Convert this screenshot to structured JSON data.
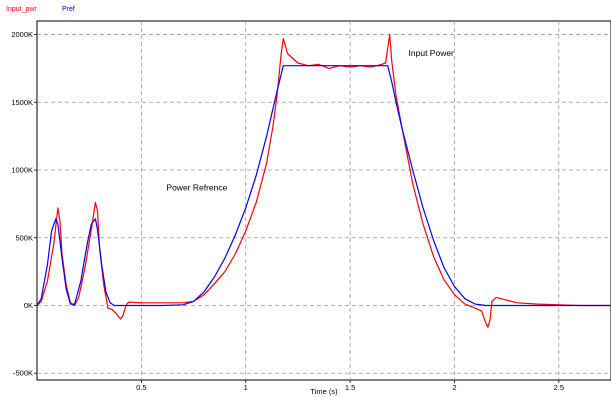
{
  "chart_data": {
    "type": "line",
    "xlabel": "Time (s)",
    "ylabel": "",
    "xlim": [
      0,
      2.75
    ],
    "ylim": [
      -550000,
      2100000
    ],
    "grid": true,
    "legend_placement": "top-left",
    "x_ticks": [
      0.5,
      1,
      1.5,
      2,
      2.5
    ],
    "x_tick_labels": [
      "0.5",
      "1",
      "1.5",
      "2",
      "2.5"
    ],
    "y_ticks": [
      -500000,
      0,
      500000,
      1000000,
      1500000,
      2000000
    ],
    "y_tick_labels": [
      "-500K",
      "0K",
      "500K",
      "1000K",
      "1500K",
      "2000K"
    ],
    "annotations": [
      {
        "text": "Input Power",
        "x": 1.78,
        "y": 1840000
      },
      {
        "text": "Power Refrence",
        "x": 0.62,
        "y": 850000
      }
    ],
    "series": [
      {
        "name": "Input_pwr",
        "color": "#ff0000",
        "x": [
          0,
          0.02,
          0.05,
          0.08,
          0.1,
          0.11,
          0.12,
          0.14,
          0.16,
          0.18,
          0.2,
          0.23,
          0.26,
          0.28,
          0.29,
          0.3,
          0.32,
          0.34,
          0.36,
          0.38,
          0.4,
          0.41,
          0.42,
          0.43,
          0.44,
          0.5,
          0.6,
          0.7,
          0.75,
          0.8,
          0.85,
          0.9,
          0.95,
          1.0,
          1.05,
          1.1,
          1.13,
          1.15,
          1.17,
          1.18,
          1.2,
          1.25,
          1.3,
          1.35,
          1.4,
          1.45,
          1.5,
          1.55,
          1.6,
          1.65,
          1.67,
          1.68,
          1.69,
          1.7,
          1.72,
          1.75,
          1.8,
          1.85,
          1.9,
          1.95,
          2.0,
          2.05,
          2.1,
          2.13,
          2.15,
          2.16,
          2.17,
          2.18,
          2.2,
          2.25,
          2.3,
          2.4,
          2.5,
          2.6,
          2.75
        ],
        "y": [
          0,
          30000,
          180000,
          450000,
          720000,
          620000,
          380000,
          150000,
          20000,
          0,
          60000,
          280000,
          560000,
          760000,
          700000,
          420000,
          150000,
          -20000,
          -30000,
          -60000,
          -100000,
          -80000,
          -30000,
          10000,
          25000,
          20000,
          20000,
          20000,
          30000,
          80000,
          160000,
          250000,
          380000,
          550000,
          760000,
          1050000,
          1320000,
          1550000,
          1860000,
          1970000,
          1860000,
          1790000,
          1770000,
          1780000,
          1750000,
          1770000,
          1760000,
          1770000,
          1760000,
          1780000,
          1790000,
          1900000,
          2000000,
          1800000,
          1550000,
          1300000,
          900000,
          600000,
          360000,
          190000,
          80000,
          10000,
          -20000,
          -40000,
          -130000,
          -160000,
          -110000,
          30000,
          60000,
          40000,
          20000,
          10000,
          5000,
          0,
          0
        ]
      },
      {
        "name": "Pref",
        "color": "#0000ff",
        "x": [
          0,
          0.02,
          0.05,
          0.07,
          0.09,
          0.1,
          0.12,
          0.14,
          0.16,
          0.18,
          0.21,
          0.24,
          0.26,
          0.28,
          0.29,
          0.31,
          0.33,
          0.35,
          0.37,
          0.4,
          0.5,
          0.6,
          0.7,
          0.75,
          0.8,
          0.85,
          0.9,
          0.95,
          1.0,
          1.05,
          1.1,
          1.15,
          1.18,
          1.2,
          1.3,
          1.4,
          1.5,
          1.6,
          1.68,
          1.7,
          1.72,
          1.75,
          1.8,
          1.85,
          1.9,
          1.95,
          2.0,
          2.05,
          2.1,
          2.15,
          2.2,
          2.3,
          2.5,
          2.75
        ],
        "y": [
          0,
          50000,
          300000,
          550000,
          640000,
          600000,
          350000,
          120000,
          10000,
          10000,
          180000,
          450000,
          600000,
          640000,
          560000,
          300000,
          100000,
          20000,
          0,
          0,
          0,
          0,
          5000,
          30000,
          100000,
          210000,
          350000,
          520000,
          720000,
          960000,
          1250000,
          1580000,
          1770000,
          1770000,
          1770000,
          1770000,
          1770000,
          1770000,
          1770000,
          1650000,
          1500000,
          1300000,
          1000000,
          720000,
          480000,
          280000,
          140000,
          50000,
          10000,
          0,
          0,
          0,
          0,
          0
        ]
      }
    ]
  }
}
